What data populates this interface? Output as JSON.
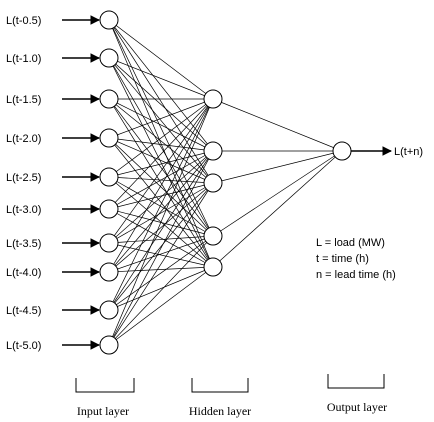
{
  "inputs": [
    "L(t-0.5)",
    "L(t-1.0)",
    "L(t-1.5)",
    "L(t-2.0)",
    "L(t-2.5)",
    "L(t-3.0)",
    "L(t-3.5)",
    "L(t-4.0)",
    "L(t-4.5)",
    "L(t-5.0)"
  ],
  "hidden_count": 6,
  "output": "L(t+n)",
  "legend": [
    "L = load (MW)",
    "t = time (h)",
    "n = lead time (h)"
  ],
  "captions": {
    "input": "Input layer",
    "hidden": "Hidden layer",
    "output": "Output layer"
  }
}
